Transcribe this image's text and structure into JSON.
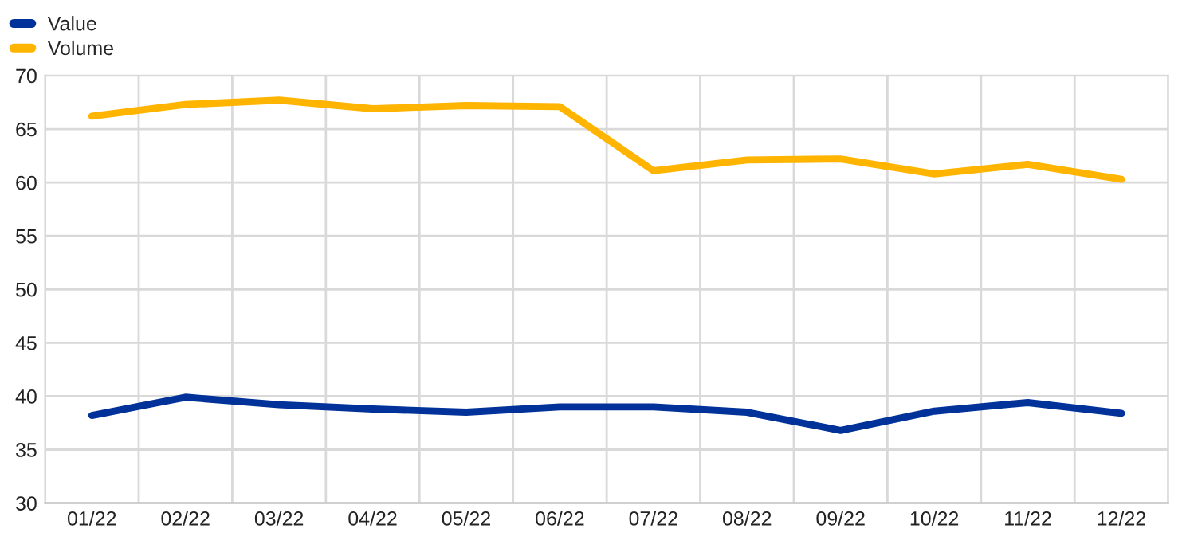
{
  "chart_data": {
    "type": "line",
    "categories": [
      "01/22",
      "02/22",
      "03/22",
      "04/22",
      "05/22",
      "06/22",
      "07/22",
      "08/22",
      "09/22",
      "10/22",
      "11/22",
      "12/22"
    ],
    "series": [
      {
        "name": "Value",
        "color": "#003299",
        "values": [
          38.2,
          39.9,
          39.2,
          38.8,
          38.5,
          39.0,
          39.0,
          38.5,
          36.8,
          38.6,
          39.4,
          38.4
        ]
      },
      {
        "name": "Volume",
        "color": "#ffb400",
        "values": [
          66.2,
          67.3,
          67.7,
          66.9,
          67.2,
          67.1,
          61.1,
          62.1,
          62.2,
          60.8,
          61.7,
          60.3
        ]
      }
    ],
    "ylim": [
      30,
      70
    ],
    "yticks": [
      30,
      35,
      40,
      45,
      50,
      55,
      60,
      65,
      70
    ],
    "grid": true,
    "legend": "top left",
    "line_style": "solid",
    "marker": "none"
  }
}
